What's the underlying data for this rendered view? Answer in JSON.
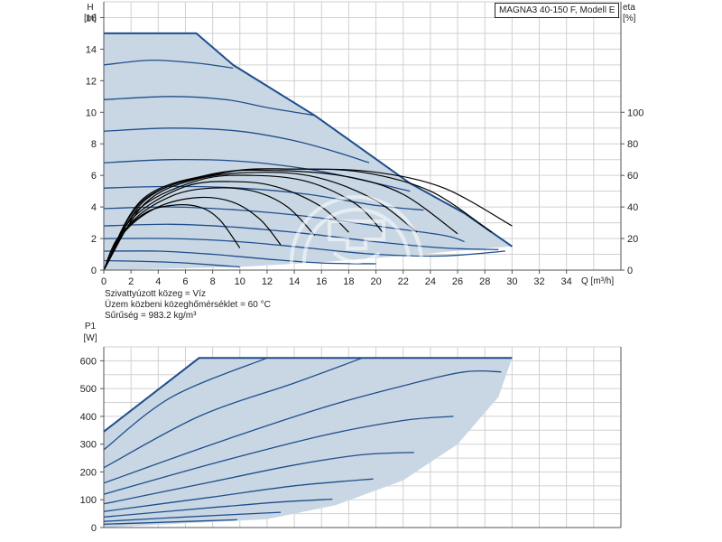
{
  "model": "MAGNA3 40-150 F, Modell E",
  "notes": [
    "Szivattyúzott közeg = Víz",
    "Üzem közbeni közeghőmérséklet = 60 °C",
    "Sűrűség = 983.2 kg/m³"
  ],
  "colors": {
    "area_fill": "#c9d7e4",
    "curve": "#1f4e8c",
    "eta_curve": "#000000",
    "grid": "#d0d0d0",
    "axis": "#555555"
  },
  "chart_data": [
    {
      "type": "line",
      "name": "head-chart",
      "ylabel_line1": "H",
      "ylabel_line2": "[m]",
      "xlabel": "Q [m³/h]",
      "y2label_line1": "eta",
      "y2label_line2": "[%]",
      "xlim": [
        0,
        38
      ],
      "ylim": [
        0,
        17
      ],
      "y2lim": [
        0,
        170
      ],
      "x_ticks": [
        "0",
        "2",
        "4",
        "6",
        "8",
        "10",
        "12",
        "14",
        "16",
        "18",
        "20",
        "22",
        "24",
        "26",
        "28",
        "30",
        "32",
        "34"
      ],
      "y_ticks": [
        "0",
        "2",
        "4",
        "6",
        "8",
        "10",
        "12",
        "14",
        "16"
      ],
      "y2_ticks": [
        "0",
        "20",
        "40",
        "60",
        "80",
        "100"
      ],
      "max_curve": [
        [
          0,
          15
        ],
        [
          6.8,
          15
        ],
        [
          9.5,
          13
        ],
        [
          15.5,
          9.8
        ],
        [
          22.5,
          5.5
        ],
        [
          26.5,
          3.6
        ],
        [
          30,
          1.5
        ]
      ],
      "area_bottom": [
        [
          0,
          0
        ],
        [
          10,
          0.2
        ],
        [
          16,
          0.5
        ],
        [
          22,
          0.9
        ],
        [
          27,
          1.3
        ],
        [
          30,
          1.5
        ]
      ],
      "head_curves": [
        [
          [
            0,
            13.0
          ],
          [
            3.5,
            13.3
          ],
          [
            7,
            13.1
          ],
          [
            9.5,
            12.8
          ]
        ],
        [
          [
            0,
            10.8
          ],
          [
            5,
            11.0
          ],
          [
            9,
            10.8
          ],
          [
            12,
            10.3
          ],
          [
            15.5,
            9.8
          ]
        ],
        [
          [
            0,
            8.8
          ],
          [
            5,
            9.0
          ],
          [
            10,
            8.8
          ],
          [
            14,
            8.2
          ],
          [
            17,
            7.5
          ],
          [
            19.5,
            6.8
          ]
        ],
        [
          [
            0,
            6.8
          ],
          [
            5,
            7.0
          ],
          [
            10,
            6.9
          ],
          [
            15,
            6.4
          ],
          [
            19,
            5.7
          ],
          [
            22.5,
            5.0
          ]
        ],
        [
          [
            0,
            5.2
          ],
          [
            5,
            5.3
          ],
          [
            10,
            5.2
          ],
          [
            15,
            4.8
          ],
          [
            20,
            4.1
          ],
          [
            23.5,
            3.8
          ]
        ],
        [
          [
            0,
            3.9
          ],
          [
            5,
            4.0
          ],
          [
            10,
            3.8
          ],
          [
            15,
            3.4
          ],
          [
            20,
            2.8
          ],
          [
            25,
            2.2
          ],
          [
            26.5,
            1.8
          ]
        ],
        [
          [
            0,
            2.8
          ],
          [
            5,
            2.9
          ],
          [
            10,
            2.7
          ],
          [
            15,
            2.3
          ],
          [
            20,
            1.8
          ],
          [
            25,
            1.4
          ],
          [
            29,
            1.3
          ]
        ],
        [
          [
            0,
            2.0
          ],
          [
            5,
            2.0
          ],
          [
            10,
            1.8
          ],
          [
            15,
            1.4
          ],
          [
            20,
            1.0
          ],
          [
            25,
            0.9
          ],
          [
            29.5,
            1.2
          ]
        ],
        [
          [
            0,
            1.2
          ],
          [
            4,
            1.2
          ],
          [
            8,
            1.0
          ],
          [
            12,
            0.7
          ],
          [
            16,
            0.45
          ],
          [
            20,
            0.4
          ]
        ],
        [
          [
            0,
            0.6
          ],
          [
            3,
            0.55
          ],
          [
            6,
            0.45
          ],
          [
            10,
            0.2
          ]
        ]
      ],
      "eta_curves": [
        [
          [
            0,
            0
          ],
          [
            1,
            20
          ],
          [
            3,
            36
          ],
          [
            5,
            41
          ],
          [
            7,
            40
          ],
          [
            8.5,
            32
          ],
          [
            10,
            14
          ]
        ],
        [
          [
            0,
            0
          ],
          [
            1.5,
            24
          ],
          [
            4,
            40
          ],
          [
            7,
            46
          ],
          [
            9.5,
            43
          ],
          [
            11.5,
            32
          ],
          [
            13,
            16
          ]
        ],
        [
          [
            0,
            0
          ],
          [
            2,
            30
          ],
          [
            5,
            47
          ],
          [
            8,
            52
          ],
          [
            11,
            50
          ],
          [
            13.5,
            40
          ],
          [
            15.5,
            22
          ]
        ],
        [
          [
            0,
            0
          ],
          [
            2,
            32
          ],
          [
            6,
            53
          ],
          [
            10,
            56
          ],
          [
            13,
            52
          ],
          [
            16,
            40
          ],
          [
            18,
            24
          ]
        ],
        [
          [
            0,
            0
          ],
          [
            2.5,
            38
          ],
          [
            7,
            57
          ],
          [
            11,
            60
          ],
          [
            15,
            56
          ],
          [
            18.5,
            42
          ],
          [
            20.5,
            24
          ]
        ],
        [
          [
            0,
            0
          ],
          [
            3,
            42
          ],
          [
            7,
            58
          ],
          [
            12,
            62
          ],
          [
            16,
            58
          ],
          [
            20,
            44
          ],
          [
            23,
            24
          ]
        ],
        [
          [
            0,
            0
          ],
          [
            3,
            44
          ],
          [
            8,
            61
          ],
          [
            13,
            63
          ],
          [
            18,
            59
          ],
          [
            22,
            48
          ],
          [
            26,
            23
          ]
        ],
        [
          [
            0,
            0
          ],
          [
            3,
            45
          ],
          [
            9,
            62
          ],
          [
            14,
            64
          ],
          [
            19,
            62
          ],
          [
            24,
            50
          ],
          [
            28.5,
            24
          ]
        ],
        [
          [
            0,
            0
          ],
          [
            3,
            46
          ],
          [
            9,
            62
          ],
          [
            15,
            64
          ],
          [
            20,
            62
          ],
          [
            25,
            52
          ],
          [
            30,
            28
          ]
        ]
      ]
    },
    {
      "type": "line",
      "name": "power-chart",
      "ylabel_line1": "P1",
      "ylabel_line2": "[W]",
      "xlim": [
        0,
        38
      ],
      "ylim": [
        0,
        650
      ],
      "y_ticks": [
        "0",
        "100",
        "200",
        "300",
        "400",
        "500",
        "600"
      ],
      "max_curve": [
        [
          0,
          345
        ],
        [
          7,
          610
        ],
        [
          30,
          610
        ]
      ],
      "area_bottom": [
        [
          0,
          0
        ],
        [
          12,
          30
        ],
        [
          17,
          80
        ],
        [
          22,
          170
        ],
        [
          26,
          300
        ],
        [
          29,
          470
        ],
        [
          30,
          610
        ]
      ],
      "power_curves": [
        [
          [
            0,
            280
          ],
          [
            5,
            470
          ],
          [
            12,
            610
          ]
        ],
        [
          [
            0,
            215
          ],
          [
            7,
            400
          ],
          [
            14,
            520
          ],
          [
            19,
            610
          ]
        ],
        [
          [
            0,
            160
          ],
          [
            8,
            300
          ],
          [
            16,
            430
          ],
          [
            22,
            510
          ],
          [
            26.5,
            560
          ],
          [
            29.2,
            560
          ]
        ],
        [
          [
            0,
            120
          ],
          [
            8,
            230
          ],
          [
            16,
            330
          ],
          [
            22,
            385
          ],
          [
            25.7,
            400
          ]
        ],
        [
          [
            0,
            85
          ],
          [
            8,
            165
          ],
          [
            14,
            225
          ],
          [
            19,
            262
          ],
          [
            22.8,
            270
          ]
        ],
        [
          [
            0,
            58
          ],
          [
            8,
            110
          ],
          [
            14,
            150
          ],
          [
            19.8,
            175
          ]
        ],
        [
          [
            0,
            38
          ],
          [
            8,
            72
          ],
          [
            13,
            92
          ],
          [
            16.8,
            102
          ]
        ],
        [
          [
            0,
            22
          ],
          [
            6,
            38
          ],
          [
            13,
            55
          ]
        ],
        [
          [
            0,
            12
          ],
          [
            5,
            20
          ],
          [
            9.8,
            28
          ]
        ]
      ]
    }
  ]
}
